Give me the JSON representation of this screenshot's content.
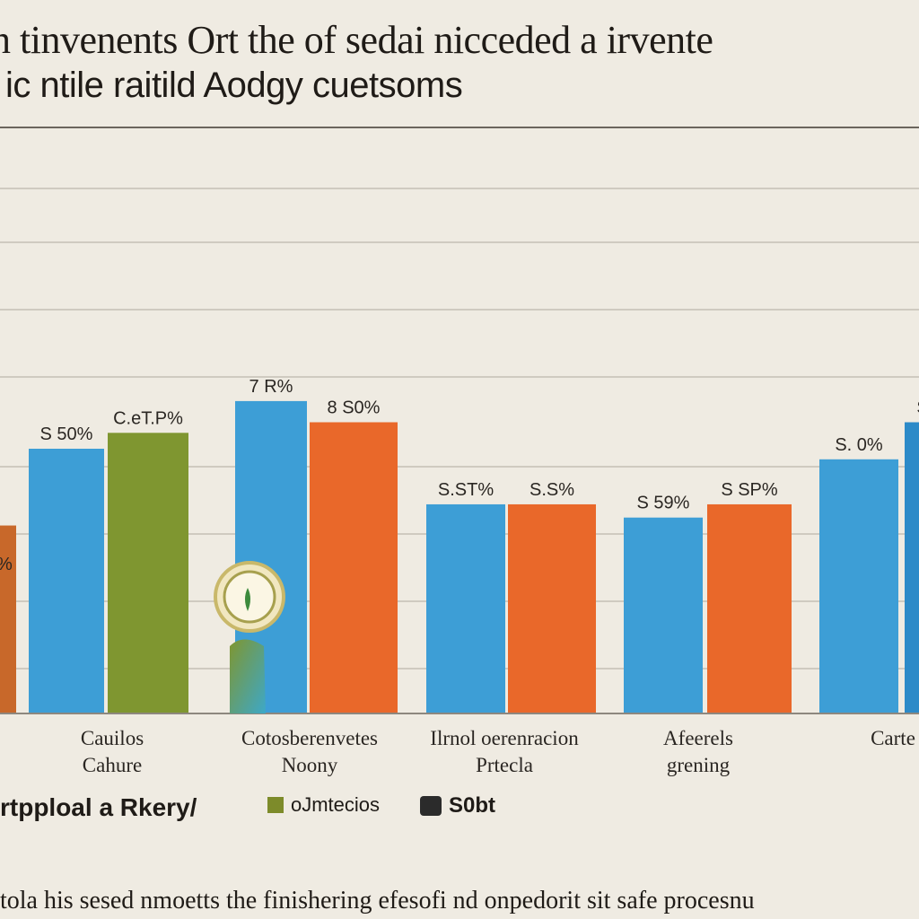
{
  "title": {
    "line1": "n tinvenents Ort the of sedai nicceded a irvente",
    "line2": "ic ntile raitild Aodgy cuetsoms"
  },
  "legend": {
    "items": [
      {
        "label": "rtpploal a Rkery/",
        "color": "#c8682a"
      },
      {
        "label": "oJmtecios",
        "color": "#7d8b2a"
      },
      {
        "label": "S0bt",
        "color": "#2b2b2b"
      }
    ]
  },
  "footer": {
    "text": "tola his sesed nmoetts the finishering efesofi nd onpedorit sit safe procesnu"
  },
  "colors": {
    "blue": "#3d9ed6",
    "orange": "#e9682a",
    "olive": "#7f9630",
    "rust": "#c8682a",
    "grid": "#cfcac0",
    "axis": "#8d877e"
  },
  "chart_data": {
    "type": "bar",
    "ylim": [
      0,
      100
    ],
    "grid": true,
    "categories": [
      {
        "label_lines": [
          "Cauilos",
          "Cahure"
        ],
        "bars": [
          {
            "series": "rust",
            "value": 71,
            "label": ""
          },
          {
            "series": "blue",
            "value": 100,
            "label": "S 50%"
          },
          {
            "series": "olive",
            "value": 106,
            "label": "C.eT.P%"
          }
        ]
      },
      {
        "label_lines": [
          "Cotosberenvetes",
          "Noony"
        ],
        "bars": [
          {
            "series": "blue",
            "value": 118,
            "label": "7 R%"
          },
          {
            "series": "orange",
            "value": 110,
            "label": "8 S0%"
          }
        ]
      },
      {
        "label_lines": [
          "Ilrnol oerenracion",
          "Prtecla"
        ],
        "bars": [
          {
            "series": "blue",
            "value": 79,
            "label": "S.ST%"
          },
          {
            "series": "orange",
            "value": 79,
            "label": "S.S%"
          }
        ]
      },
      {
        "label_lines": [
          "Afeerels",
          "grening"
        ],
        "bars": [
          {
            "series": "blue",
            "value": 74,
            "label": "S 59%"
          },
          {
            "series": "orange",
            "value": 79,
            "label": "S SP%"
          }
        ]
      },
      {
        "label_lines": [
          "Carte"
        ],
        "bars": [
          {
            "series": "blue",
            "value": 96,
            "label": "S. 0%"
          },
          {
            "series": "blue2",
            "value": 110,
            "label": "S"
          }
        ]
      }
    ],
    "partial_label": "%"
  }
}
